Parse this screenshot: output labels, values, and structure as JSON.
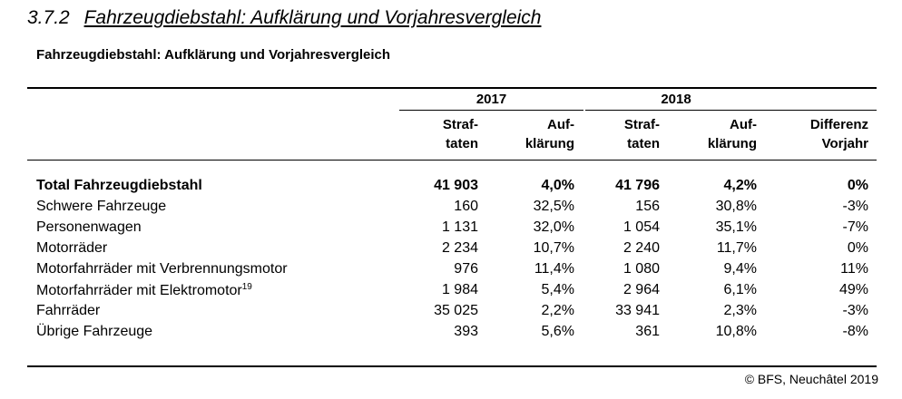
{
  "section": {
    "number": "3.7.2",
    "title": "Fahrzeugdiebstahl: Aufklärung und Vorjahresvergleich"
  },
  "table_title": "Fahrzeugdiebstahl: Aufklärung und Vorjahresvergleich",
  "years": [
    "2017",
    "2018"
  ],
  "columns": {
    "straftaten_1": "Straf-",
    "straftaten_2": "taten",
    "aufklaerung_1": "Auf-",
    "aufklaerung_2": "klärung",
    "differenz_1": "Differenz",
    "differenz_2": "Vorjahr"
  },
  "rows": [
    {
      "label": "Total Fahrzeugdiebstahl",
      "footnote": "",
      "bold": true,
      "s2017": "41 903",
      "a2017": "4,0%",
      "s2018": "41 796",
      "a2018": "4,2%",
      "diff": "0%"
    },
    {
      "label": "Schwere Fahrzeuge",
      "footnote": "",
      "bold": false,
      "s2017": "160",
      "a2017": "32,5%",
      "s2018": "156",
      "a2018": "30,8%",
      "diff": "-3%"
    },
    {
      "label": "Personenwagen",
      "footnote": "",
      "bold": false,
      "s2017": "1 131",
      "a2017": "32,0%",
      "s2018": "1 054",
      "a2018": "35,1%",
      "diff": "-7%"
    },
    {
      "label": "Motorräder",
      "footnote": "",
      "bold": false,
      "s2017": "2 234",
      "a2017": "10,7%",
      "s2018": "2 240",
      "a2018": "11,7%",
      "diff": "0%"
    },
    {
      "label": "Motorfahrräder mit Verbrennungsmotor",
      "footnote": "",
      "bold": false,
      "s2017": "976",
      "a2017": "11,4%",
      "s2018": "1 080",
      "a2018": "9,4%",
      "diff": "11%"
    },
    {
      "label": "Motorfahrräder mit Elektromotor",
      "footnote": "19",
      "bold": false,
      "s2017": "1 984",
      "a2017": "5,4%",
      "s2018": "2 964",
      "a2018": "6,1%",
      "diff": "49%"
    },
    {
      "label": "Fahrräder",
      "footnote": "",
      "bold": false,
      "s2017": "35 025",
      "a2017": "2,2%",
      "s2018": "33 941",
      "a2018": "2,3%",
      "diff": "-3%"
    },
    {
      "label": "Übrige Fahrzeuge",
      "footnote": "",
      "bold": false,
      "s2017": "393",
      "a2017": "5,6%",
      "s2018": "361",
      "a2018": "10,8%",
      "diff": "-8%"
    }
  ],
  "source": "© BFS, Neuchâtel 2019"
}
